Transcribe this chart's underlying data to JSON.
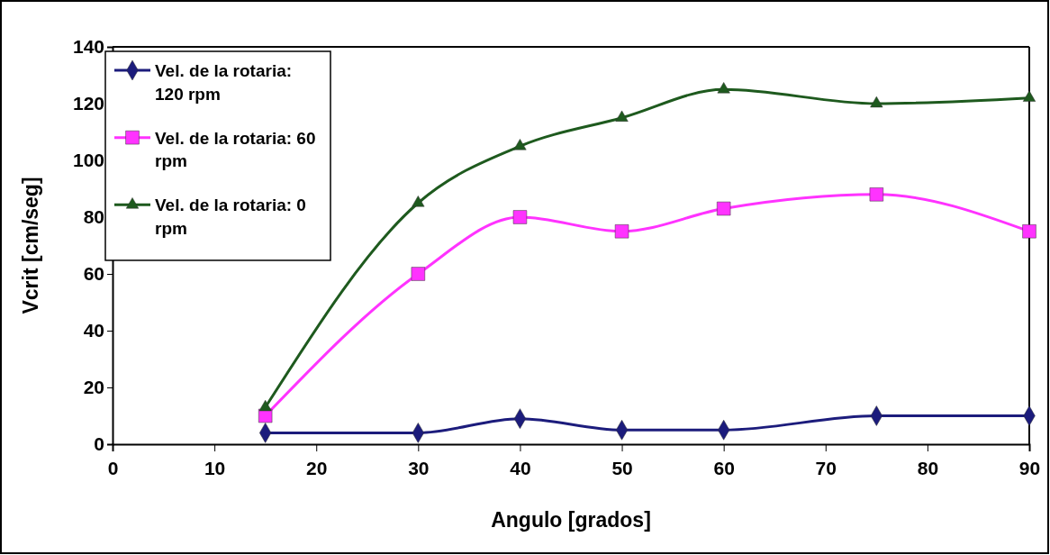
{
  "chart_data": {
    "type": "line",
    "xlabel": "Angulo [grados]",
    "ylabel": "Vcrit [cm/seg]",
    "x": [
      15,
      30,
      40,
      50,
      60,
      75,
      90
    ],
    "series": [
      {
        "name": "Vel. de la rotaria: 120 rpm",
        "color": "#1c1c7c",
        "marker": "diamond",
        "values": [
          4,
          4,
          9,
          5,
          5,
          10,
          10
        ]
      },
      {
        "name": "Vel. de la rotaria: 60 rpm",
        "color": "#ff33ff",
        "marker": "square",
        "values": [
          10,
          60,
          80,
          75,
          83,
          88,
          75
        ]
      },
      {
        "name": "Vel. de la rotaria: 0 rpm",
        "color": "#1e5a1e",
        "marker": "triangle",
        "values": [
          13,
          85,
          105,
          115,
          125,
          120,
          122
        ]
      }
    ],
    "xlim": [
      0,
      90
    ],
    "xticks": [
      0,
      10,
      20,
      30,
      40,
      50,
      60,
      70,
      80,
      90
    ],
    "ylim": [
      0,
      140
    ],
    "yticks": [
      0,
      20,
      40,
      60,
      80,
      100,
      120,
      140
    ],
    "legend": "top left",
    "grid": false
  }
}
